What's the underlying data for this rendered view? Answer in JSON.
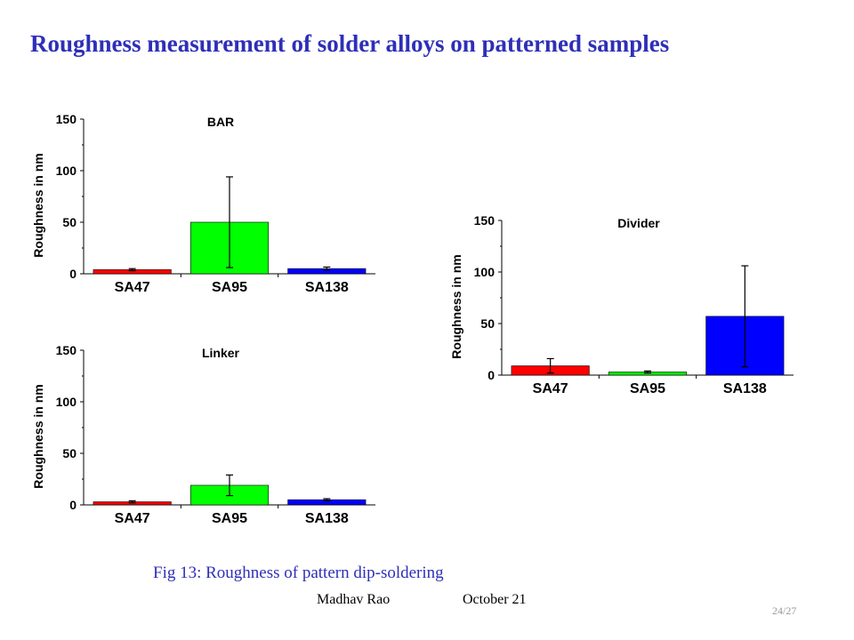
{
  "slide": {
    "title": "Roughness measurement of solder alloys on patterned samples",
    "caption": "Fig 13: Roughness of  pattern dip-soldering",
    "author": "Madhav Rao",
    "date": "October 21",
    "page": "24/27",
    "accent_color": "#2e2fb8"
  },
  "chart_data": [
    {
      "type": "bar",
      "title": "BAR",
      "ylabel": "Roughness in nm",
      "categories": [
        "SA47",
        "SA95",
        "SA138"
      ],
      "values": [
        4,
        50,
        5
      ],
      "errors": [
        1,
        44,
        1.5
      ],
      "colors": [
        "#ff0000",
        "#00ff00",
        "#0000ff"
      ],
      "ylim": [
        0,
        150
      ],
      "yticks": [
        0,
        50,
        100,
        150
      ]
    },
    {
      "type": "bar",
      "title": "Linker",
      "ylabel": "Roughness in nm",
      "categories": [
        "SA47",
        "SA95",
        "SA138"
      ],
      "values": [
        3,
        19,
        5
      ],
      "errors": [
        1,
        10,
        1
      ],
      "colors": [
        "#ff0000",
        "#00ff00",
        "#0000ff"
      ],
      "ylim": [
        0,
        150
      ],
      "yticks": [
        0,
        50,
        100,
        150
      ]
    },
    {
      "type": "bar",
      "title": "Divider",
      "ylabel": "Roughness in nm",
      "categories": [
        "SA47",
        "SA95",
        "SA138"
      ],
      "values": [
        9,
        3,
        57
      ],
      "errors": [
        7,
        1,
        49
      ],
      "colors": [
        "#ff0000",
        "#00ff00",
        "#0000ff"
      ],
      "ylim": [
        0,
        150
      ],
      "yticks": [
        0,
        50,
        100,
        150
      ]
    }
  ]
}
